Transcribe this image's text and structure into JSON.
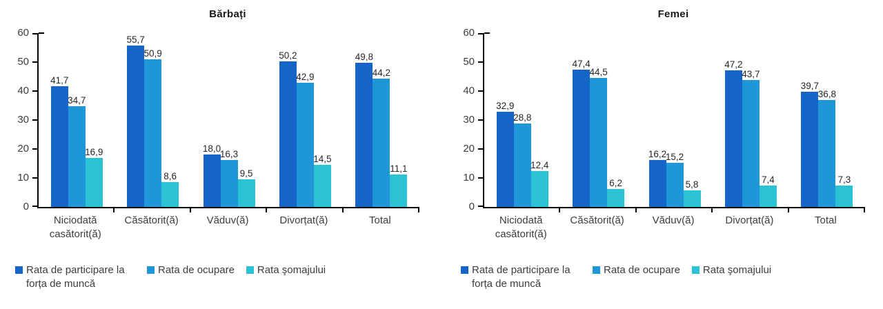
{
  "colors": {
    "participation": "#1565C8",
    "employment": "#1F96D8",
    "unemployment": "#2BC2D6",
    "axis": "#000000",
    "text_dark": "#262626",
    "text_gray": "#3D3D3D"
  },
  "chart_data": [
    {
      "type": "bar",
      "title": "Bărbați",
      "categories": [
        "Niciodată casătorit(ă)",
        "Căsătorit(ă)",
        "Văduv(ă)",
        "Divorțat(ă)",
        "Total"
      ],
      "series": [
        {
          "name": "Rata de participare la forța de muncă",
          "color": "#1565C8",
          "values": [
            41.7,
            55.7,
            18.0,
            50.2,
            49.8
          ],
          "labels": [
            "41,7",
            "55,7",
            "18,0",
            "50,2",
            "49,8"
          ]
        },
        {
          "name": "Rata de ocupare",
          "color": "#1F96D8",
          "values": [
            34.7,
            50.9,
            16.3,
            42.9,
            44.2
          ],
          "labels": [
            "34,7",
            "50,9",
            "16,3",
            "42,9",
            "44,2"
          ]
        },
        {
          "name": "Rata şomajului",
          "color": "#2BC2D6",
          "values": [
            16.9,
            8.6,
            9.5,
            14.5,
            11.1
          ],
          "labels": [
            "16,9",
            "8,6",
            "9,5",
            "14,5",
            "11,1"
          ]
        }
      ],
      "ylim": [
        0,
        60
      ],
      "yticks": [
        0,
        10,
        20,
        30,
        40,
        50,
        60
      ],
      "grid": false,
      "legend_position": "bottom",
      "decimal_separator": ","
    },
    {
      "type": "bar",
      "title": "Femei",
      "categories": [
        "Niciodată casătorit(ă)",
        "Căsătorit(ă)",
        "Văduv(ă)",
        "Divorțat(ă)",
        "Total"
      ],
      "series": [
        {
          "name": "Rata de participare la forța de muncă",
          "color": "#1565C8",
          "values": [
            32.9,
            47.4,
            16.2,
            47.2,
            39.7
          ],
          "labels": [
            "32,9",
            "47,4",
            "16,2",
            "47,2",
            "39,7"
          ]
        },
        {
          "name": "Rata de ocupare",
          "color": "#1F96D8",
          "values": [
            28.8,
            44.5,
            15.2,
            43.7,
            36.8
          ],
          "labels": [
            "28,8",
            "44,5",
            "15,2",
            "43,7",
            "36,8"
          ]
        },
        {
          "name": "Rata şomajului",
          "color": "#2BC2D6",
          "values": [
            12.4,
            6.2,
            5.8,
            7.4,
            7.3
          ],
          "labels": [
            "12,4",
            "6,2",
            "5,8",
            "7,4",
            "7,3"
          ]
        }
      ],
      "ylim": [
        0,
        60
      ],
      "yticks": [
        0,
        10,
        20,
        30,
        40,
        50,
        60
      ],
      "grid": false,
      "legend_position": "bottom",
      "decimal_separator": ","
    }
  ]
}
